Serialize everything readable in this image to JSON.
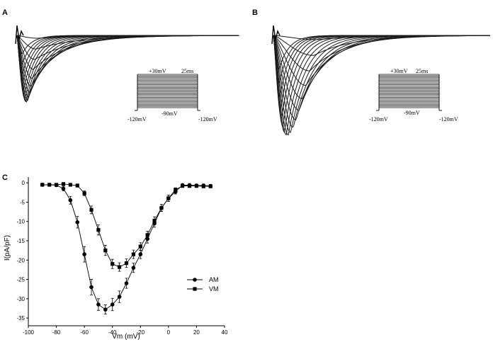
{
  "panels": {
    "A": {
      "label": "A",
      "protocol": {
        "top_left": "+30mV",
        "top_right": "25ms",
        "hold": "-90mV",
        "left": "-120mV",
        "right": "-120mV"
      }
    },
    "B": {
      "label": "B",
      "protocol": {
        "top_left": "+30mV",
        "top_right": "25ms",
        "hold": "-90mV",
        "left": "-120mV",
        "right": "-120mV"
      }
    },
    "C": {
      "label": "C"
    }
  },
  "colors": {
    "ink": "#000000",
    "trace": "#1a1a1a"
  },
  "chart_data": {
    "type": "line",
    "title": "",
    "xlabel": "Vm (mV)",
    "ylabel": "I(pA/pF)",
    "xlim": [
      -100,
      40
    ],
    "ylim": [
      -37,
      1.5
    ],
    "xticks": [
      -100,
      -80,
      -60,
      -40,
      -20,
      0,
      20,
      40
    ],
    "yticks": [
      0,
      -5,
      -10,
      -15,
      -20,
      -25,
      -30,
      -35
    ],
    "x": [
      -90,
      -85,
      -80,
      -75,
      -70,
      -65,
      -60,
      -55,
      -50,
      -45,
      -40,
      -35,
      -30,
      -25,
      -20,
      -15,
      -10,
      -5,
      0,
      5,
      10,
      15,
      20,
      25,
      30
    ],
    "series": [
      {
        "name": "AM",
        "marker": "circle",
        "values": [
          -0.5,
          -0.5,
          -0.6,
          -1.5,
          -4.5,
          -10.2,
          -18.5,
          -27,
          -31.5,
          -32.8,
          -31.5,
          -29.5,
          -26,
          -22,
          -18.5,
          -14.5,
          -10.5,
          -6.5,
          -4,
          -2.3,
          -0.6,
          -0.6,
          -0.7,
          -0.7,
          -0.8
        ],
        "errors": [
          0.4,
          0.4,
          0.4,
          0.6,
          1.0,
          1.5,
          2.0,
          2.0,
          1.5,
          1.2,
          1.6,
          1.5,
          1.3,
          1.2,
          1.1,
          1.1,
          1.0,
          0.9,
          0.8,
          0.6,
          0.4,
          0.4,
          0.4,
          0.4,
          0.4
        ]
      },
      {
        "name": "VM",
        "marker": "square",
        "values": [
          -0.5,
          -0.5,
          -0.5,
          -0.3,
          -0.5,
          -0.7,
          -2.7,
          -7,
          -12.2,
          -17.5,
          -21,
          -21.8,
          -20.8,
          -18.5,
          -16.5,
          -13.5,
          -9.8,
          -6.5,
          -4,
          -1.8,
          -0.8,
          -0.8,
          -0.8,
          -0.9,
          -0.9
        ],
        "errors": [
          0.3,
          0.3,
          0.3,
          0.3,
          0.3,
          0.4,
          0.6,
          1.0,
          1.3,
          1.3,
          1.2,
          1.1,
          1.1,
          1.1,
          1.0,
          1.0,
          1.0,
          0.9,
          0.8,
          0.5,
          0.4,
          0.4,
          0.4,
          0.4,
          0.4
        ]
      }
    ],
    "legend": {
      "placement": "right",
      "entries": [
        "AM",
        "VM"
      ]
    }
  }
}
